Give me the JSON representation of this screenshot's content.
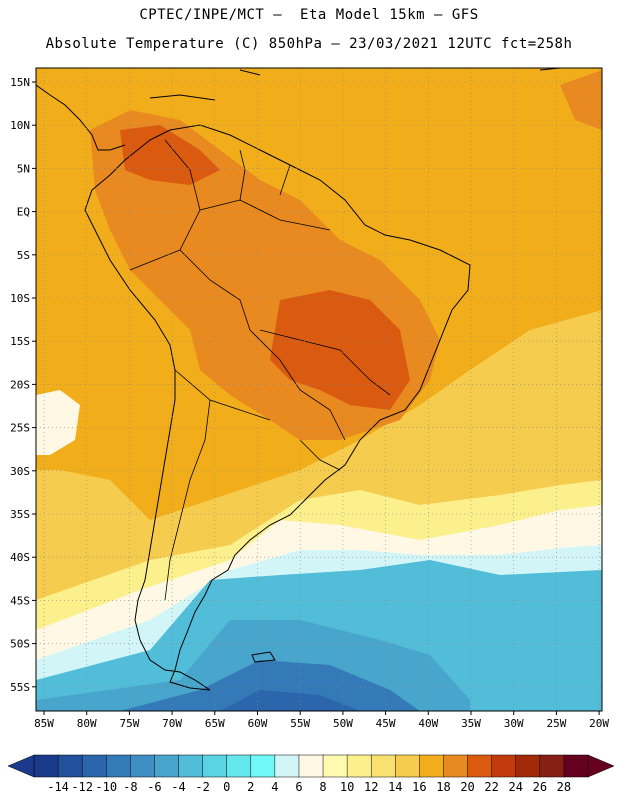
{
  "header": {
    "line1": "CPTEC/INPE/MCT –  Eta Model 15km – GFS",
    "line2": "Absolute Temperature (C) 850hPa – 23/03/2021 12UTC fct=258h"
  },
  "axes": {
    "lat_labels": [
      "15N",
      "10N",
      "5N",
      "EQ",
      "5S",
      "10S",
      "15S",
      "20S",
      "25S",
      "30S",
      "35S",
      "40S",
      "45S",
      "50S",
      "55S"
    ],
    "lon_labels": [
      "85W",
      "80W",
      "75W",
      "70W",
      "65W",
      "60W",
      "55W",
      "50W",
      "45W",
      "40W",
      "35W",
      "30W",
      "25W",
      "20W"
    ]
  },
  "colorbar": {
    "labels": [
      "-14",
      "-12",
      "-10",
      "-8",
      "-6",
      "-4",
      "-2",
      "0",
      "2",
      "4",
      "6",
      "8",
      "10",
      "12",
      "14",
      "16",
      "18",
      "20",
      "22",
      "24",
      "26",
      "28"
    ],
    "colors": [
      "#1b3a8c",
      "#22509c",
      "#2b65ab",
      "#357ab8",
      "#3f8fc4",
      "#48a5cc",
      "#52bdd8",
      "#5ad3e3",
      "#63e6ec",
      "#6ff8f8",
      "#d2f6f8",
      "#fef8e4",
      "#fefab0",
      "#fbf08c",
      "#f9e170",
      "#f5cc4e",
      "#f2ae1a",
      "#e88a20",
      "#da5a10",
      "#c23a0c",
      "#a02a0a",
      "#862016",
      "#660020"
    ]
  },
  "map": {
    "colors": {
      "ocean_north": "#f2ae1a",
      "warm": "#e88a20",
      "hot": "#da5a10",
      "yellow": "#f5cc4e",
      "light_yellow": "#fbf08c",
      "cream": "#fef8e4",
      "light_cyan": "#d2f6f8",
      "cyan": "#52bdd8",
      "teal": "#48a5cc",
      "blue": "#357ab8",
      "dark_blue": "#2b65ab"
    }
  }
}
